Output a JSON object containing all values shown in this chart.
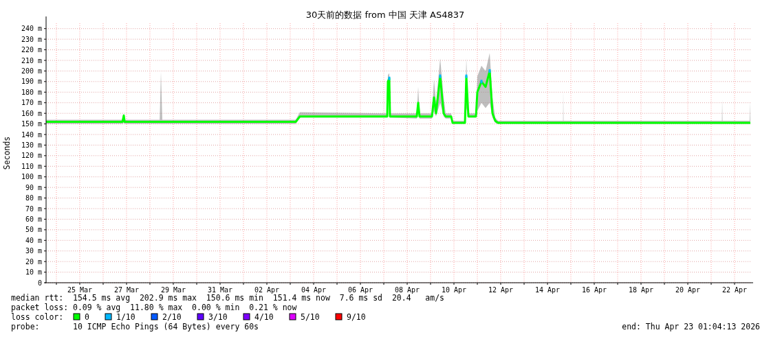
{
  "chart_data": {
    "type": "line",
    "title": "30天前的数据 from 中国 天津 AS4837",
    "ylabel": "Seconds",
    "xlim": [
      "2026-03-23T13:25",
      "2026-04-22T16:13"
    ],
    "xticks": [
      {
        "value": "2026-03-24",
        "label": null
      },
      {
        "value": "2026-03-25",
        "label": "25 Mar"
      },
      {
        "value": "2026-03-26",
        "label": null
      },
      {
        "value": "2026-03-27",
        "label": "27 Mar"
      },
      {
        "value": "2026-03-28",
        "label": null
      },
      {
        "value": "2026-03-29",
        "label": "29 Mar"
      },
      {
        "value": "2026-03-30",
        "label": null
      },
      {
        "value": "2026-03-31",
        "label": "31 Mar"
      },
      {
        "value": "2026-04-01",
        "label": null
      },
      {
        "value": "2026-04-02",
        "label": "02 Apr"
      },
      {
        "value": "2026-04-03",
        "label": null
      },
      {
        "value": "2026-04-04",
        "label": "04 Apr"
      },
      {
        "value": "2026-04-05",
        "label": null
      },
      {
        "value": "2026-04-06",
        "label": "06 Apr"
      },
      {
        "value": "2026-04-07",
        "label": null
      },
      {
        "value": "2026-04-08",
        "label": "08 Apr"
      },
      {
        "value": "2026-04-09",
        "label": null
      },
      {
        "value": "2026-04-10",
        "label": "10 Apr"
      },
      {
        "value": "2026-04-11",
        "label": null
      },
      {
        "value": "2026-04-12",
        "label": "12 Apr"
      },
      {
        "value": "2026-04-13",
        "label": null
      },
      {
        "value": "2026-04-14",
        "label": "14 Apr"
      },
      {
        "value": "2026-04-15",
        "label": null
      },
      {
        "value": "2026-04-16",
        "label": "16 Apr"
      },
      {
        "value": "2026-04-17",
        "label": null
      },
      {
        "value": "2026-04-18",
        "label": "18 Apr"
      },
      {
        "value": "2026-04-19",
        "label": null
      },
      {
        "value": "2026-04-20",
        "label": "20 Apr"
      },
      {
        "value": "2026-04-21",
        "label": null
      },
      {
        "value": "2026-04-22",
        "label": "22 Apr"
      }
    ],
    "ylim": [
      0,
      245
    ],
    "yticks": [
      0,
      {
        "value": 10,
        "label": "10 m"
      },
      {
        "value": 20,
        "label": "20 m"
      },
      {
        "value": 30,
        "label": "30 m"
      },
      {
        "value": 40,
        "label": "40 m"
      },
      {
        "value": 50,
        "label": "50 m"
      },
      {
        "value": 60,
        "label": "60 m"
      },
      {
        "value": 70,
        "label": "70 m"
      },
      {
        "value": 80,
        "label": "80 m"
      },
      {
        "value": 90,
        "label": "90 m"
      },
      {
        "value": 100,
        "label": "100 m"
      },
      {
        "value": 110,
        "label": "110 m"
      },
      {
        "value": 120,
        "label": "120 m"
      },
      {
        "value": 130,
        "label": "130 m"
      },
      {
        "value": 140,
        "label": "140 m"
      },
      {
        "value": 150,
        "label": "150 m"
      },
      {
        "value": 160,
        "label": "160 m"
      },
      {
        "value": 170,
        "label": "170 m"
      },
      {
        "value": 180,
        "label": "180 m"
      },
      {
        "value": 190,
        "label": "190 m"
      },
      {
        "value": 200,
        "label": "200 m"
      },
      {
        "value": 210,
        "label": "210 m"
      },
      {
        "value": 220,
        "label": "220 m"
      },
      {
        "value": 230,
        "label": "230 m"
      },
      {
        "value": 240,
        "label": "240 m"
      }
    ],
    "grid": true,
    "legend": "bottom left",
    "legend_title": "loss color:",
    "series": [
      {
        "name": "0",
        "color": "#00ff00",
        "type": "line",
        "x": [
          "2026-03-23T13:25",
          "2026-03-26T19:46",
          "2026-03-26T21:10",
          "2026-03-26T22:00",
          "2026-03-28T10:00",
          "2026-03-28T11:18",
          "2026-03-28T12:42",
          "2026-04-03T05:38",
          "2026-04-03T09:53",
          "2026-04-07T03:32",
          "2026-04-07T04:14",
          "2026-04-07T05:38",
          "2026-04-07T06:21",
          "2026-04-08T09:53",
          "2026-04-08T11:18",
          "2026-04-08T12:42",
          "2026-04-09T01:25",
          "2026-04-09T03:32",
          "2026-04-09T05:38",
          "2026-04-09T09:53",
          "2026-04-09T13:25",
          "2026-04-09T15:32",
          "2026-04-09T21:10",
          "2026-04-09T22:35",
          "2026-04-10T11:18",
          "2026-04-10T12:42",
          "2026-04-10T14:50",
          "2026-04-10T22:35",
          "2026-04-11T00:00",
          "2026-04-11T04:14",
          "2026-04-11T08:28",
          "2026-04-11T12:42",
          "2026-04-11T15:32",
          "2026-04-11T18:21",
          "2026-04-11T21:10",
          "2026-04-14T16:00",
          "2026-04-14T16:13",
          "2026-04-14T16:30",
          "2026-04-21T11:00",
          "2026-04-21T11:18",
          "2026-04-21T11:40",
          "2026-04-22T15:30",
          "2026-04-22T16:13"
        ],
        "values": [
          152,
          152,
          158,
          152,
          152,
          152,
          152,
          152,
          157,
          157,
          190,
          193,
          157,
          157,
          170,
          157,
          157,
          175,
          160,
          195,
          160,
          157,
          157,
          151,
          151,
          195,
          157,
          157,
          180,
          190,
          185,
          200,
          160,
          153,
          151,
          151,
          151,
          151,
          151,
          151,
          151,
          151,
          151
        ],
        "lower": [
          150,
          150,
          151,
          150,
          150,
          150,
          150,
          150,
          156,
          156,
          185,
          186,
          156,
          155,
          162,
          155,
          155,
          162,
          157,
          170,
          157,
          155,
          155,
          150,
          150,
          165,
          156,
          156,
          162,
          170,
          165,
          170,
          156,
          151,
          150,
          150,
          150,
          150,
          150,
          150,
          150,
          150,
          150
        ],
        "upper": [
          154,
          154,
          160,
          154,
          154,
          199,
          154,
          154,
          161,
          160,
          196,
          198,
          160,
          160,
          185,
          160,
          160,
          192,
          170,
          212,
          175,
          160,
          160,
          153,
          153,
          212,
          160,
          160,
          195,
          205,
          200,
          217,
          175,
          156,
          153,
          153,
          181,
          153,
          153,
          173,
          153,
          153,
          171
        ]
      },
      {
        "name": "1/10",
        "color": "#00b8ff",
        "type": "scatter",
        "x": [
          "2026-04-07T05:38",
          "2026-04-09T09:53",
          "2026-04-10T12:42",
          "2026-04-11T04:14",
          "2026-04-11T12:42"
        ],
        "values": [
          193,
          195,
          195,
          190,
          200
        ]
      },
      {
        "name": "2/10",
        "color": "#0059ff",
        "type": "scatter"
      },
      {
        "name": "3/10",
        "color": "#5e00ff",
        "type": "scatter"
      },
      {
        "name": "4/10",
        "color": "#7e00ff",
        "type": "scatter"
      },
      {
        "name": "5/10",
        "color": "#dd00ff",
        "type": "scatter"
      },
      {
        "name": "9/10",
        "color": "#ff0000",
        "type": "scatter"
      }
    ],
    "annotations": [
      "median rtt:  154.5 ms avg  202.9 ms max  150.6 ms min  151.4 ms now  7.6 ms sd  20.4   am/s",
      "packet loss: 0.09 % avg  11.80 % max  0.00 % min  0.21 % now",
      "probe:       10 ICMP Echo Pings (64 Bytes) every 60s",
      "end: Thu Apr 23 01:04:13 2026"
    ]
  }
}
